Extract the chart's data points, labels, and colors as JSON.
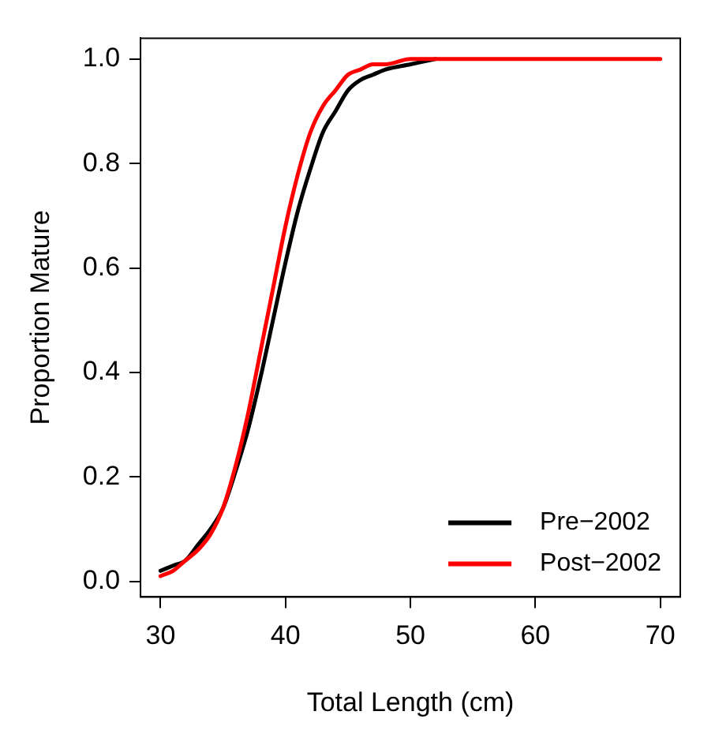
{
  "chart_data": {
    "type": "line",
    "xlabel": "Total Length (cm)",
    "ylabel": "Proportion Mature",
    "xlim": [
      28.4,
      71.6
    ],
    "xticks": [
      30,
      40,
      50,
      60,
      70
    ],
    "ylim": [
      -0.03,
      1.04
    ],
    "yticks": [
      {
        "value": 0,
        "label": "0.0"
      },
      0.2,
      0.4,
      0.6,
      0.8,
      {
        "value": 1,
        "label": "1.0"
      }
    ],
    "grid": false,
    "legend": "bottom right",
    "marker": "none",
    "line_style": "solid",
    "series": [
      {
        "name": "Pre−2002",
        "color": "#000000",
        "x": [
          30,
          31,
          32,
          33,
          34,
          35,
          36,
          37,
          38,
          39,
          40,
          41,
          42,
          43,
          44,
          45,
          46,
          47,
          48,
          50,
          52
        ],
        "values": [
          0.02,
          0.03,
          0.04,
          0.07,
          0.1,
          0.14,
          0.21,
          0.29,
          0.39,
          0.5,
          0.61,
          0.71,
          0.79,
          0.86,
          0.9,
          0.94,
          0.96,
          0.97,
          0.98,
          0.99,
          1.0
        ]
      },
      {
        "name": "Post−2002",
        "color": "#ff0000",
        "x": [
          30,
          31,
          32,
          33,
          34,
          35,
          36,
          37,
          38,
          39,
          40,
          41,
          42,
          43,
          44,
          45,
          46,
          47,
          48,
          50,
          52,
          55,
          60,
          70
        ],
        "values": [
          0.01,
          0.02,
          0.04,
          0.06,
          0.09,
          0.14,
          0.22,
          0.32,
          0.44,
          0.56,
          0.68,
          0.78,
          0.86,
          0.91,
          0.94,
          0.97,
          0.98,
          0.99,
          0.99,
          1.0,
          1.0,
          1.0,
          1.0,
          1.0
        ]
      }
    ]
  }
}
